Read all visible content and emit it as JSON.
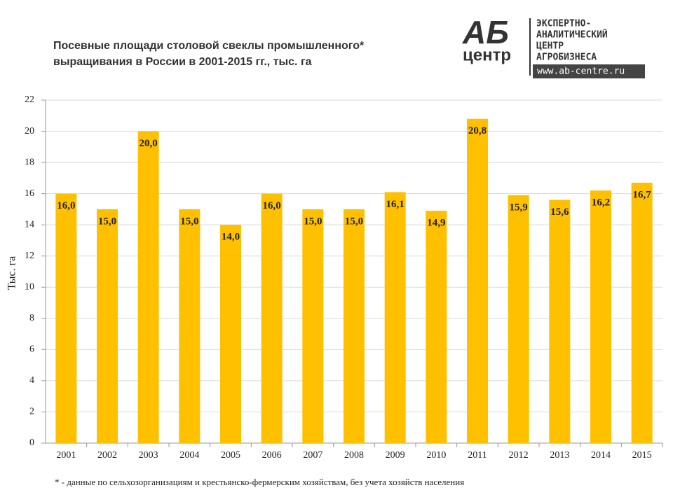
{
  "chart_data": {
    "type": "bar",
    "title": [
      "Посевные площади столовой свеклы промышленного*",
      "выращивания в России в 2001-2015 гг., тыс. га"
    ],
    "y_label": "Тыс. га",
    "note": "* - данные по сельхозорганизациям и крестьянско-фермерским  хозяйствам, без учета хозяйств населения",
    "categories": [
      "2001",
      "2002",
      "2003",
      "2004",
      "2005",
      "2006",
      "2007",
      "2008",
      "2009",
      "2010",
      "2011",
      "2012",
      "2013",
      "2014",
      "2015"
    ],
    "values": [
      16.0,
      15.0,
      20.0,
      15.0,
      14.0,
      16.0,
      15.0,
      15.0,
      16.1,
      14.9,
      20.8,
      15.9,
      15.6,
      16.2,
      16.7
    ],
    "value_labels": [
      "16,0",
      "15,0",
      "20,0",
      "15,0",
      "14,0",
      "16,0",
      "15,0",
      "15,0",
      "16,1",
      "14,9",
      "20,8",
      "15,9",
      "15,6",
      "16,2",
      "16,7"
    ],
    "color": "#ffc000",
    "ylim": [
      0,
      22
    ],
    "yticks": [
      0,
      2,
      4,
      6,
      8,
      10,
      12,
      14,
      16,
      18,
      20,
      22
    ],
    "grid": true
  },
  "logo": {
    "mark": "АБ",
    "sub": "центр",
    "lines": [
      "ЭКСПЕРТНО-",
      "АНАЛИТИЧЕСКИЙ",
      "ЦЕНТР",
      "АГРОБИЗНЕСА"
    ],
    "url": "www.ab-centre.ru"
  }
}
